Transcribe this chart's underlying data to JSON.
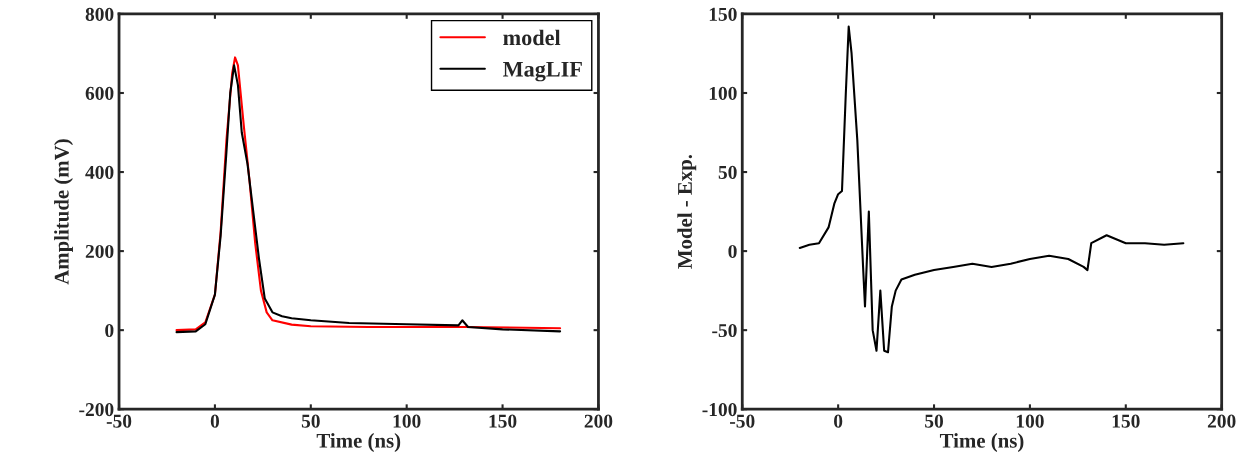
{
  "chart_data": [
    {
      "type": "line",
      "xlabel": "Time (ns)",
      "ylabel": "Amplitude (mV)",
      "xlim": [
        -50,
        200
      ],
      "xticks": [
        -50,
        0,
        50,
        100,
        150,
        200
      ],
      "ylim": [
        -200,
        800
      ],
      "yticks": [
        -200,
        0,
        200,
        400,
        600,
        800
      ],
      "grid": false,
      "legend": "top right",
      "marker": "none",
      "line_style": "solid",
      "series": [
        {
          "name": "model",
          "color": "#ff0000",
          "x": [
            -20,
            -10,
            -5,
            0,
            3,
            6,
            9,
            10.5,
            12,
            15,
            18,
            21,
            24,
            27,
            30,
            40,
            50,
            80,
            130,
            180
          ],
          "values": [
            0,
            2,
            20,
            90,
            250,
            480,
            650,
            690,
            670,
            520,
            380,
            220,
            100,
            45,
            25,
            14,
            10,
            8,
            8,
            5
          ]
        },
        {
          "name": "MagLIF",
          "color": "#000000",
          "x": [
            -20,
            -10,
            -5,
            0,
            3,
            6,
            8,
            10,
            12,
            14,
            17,
            20,
            23,
            26,
            30,
            35,
            40,
            50,
            70,
            100,
            127,
            129,
            132,
            150,
            180
          ],
          "values": [
            -5,
            -3,
            15,
            90,
            240,
            450,
            600,
            670,
            620,
            500,
            420,
            300,
            180,
            80,
            45,
            35,
            30,
            25,
            18,
            15,
            12,
            25,
            8,
            2,
            -3
          ]
        }
      ]
    },
    {
      "type": "line",
      "xlabel": "Time (ns)",
      "ylabel": "Model - Exp.",
      "xlim": [
        -50,
        200
      ],
      "xticks": [
        -50,
        0,
        50,
        100,
        150,
        200
      ],
      "ylim": [
        -100,
        150
      ],
      "yticks": [
        -100,
        -50,
        0,
        50,
        100,
        150
      ],
      "grid": false,
      "legend": false,
      "marker": "none",
      "line_style": "solid",
      "series": [
        {
          "color": "#000000",
          "x": [
            -20,
            -15,
            -10,
            -5,
            -2,
            0,
            2,
            4,
            5.5,
            7,
            10,
            13,
            14,
            16,
            18,
            20,
            22,
            24,
            26,
            28,
            30,
            33,
            40,
            50,
            60,
            70,
            80,
            90,
            100,
            110,
            120,
            128,
            130,
            132,
            140,
            150,
            160,
            170,
            180
          ],
          "values": [
            2,
            4,
            5,
            15,
            30,
            36,
            38,
            100,
            142,
            125,
            70,
            -10,
            -35,
            25,
            -50,
            -63,
            -25,
            -63,
            -64,
            -35,
            -25,
            -18,
            -15,
            -12,
            -10,
            -8,
            -10,
            -8,
            -5,
            -3,
            -5,
            -10,
            -12,
            5,
            10,
            5,
            5,
            4,
            5
          ]
        }
      ]
    }
  ]
}
